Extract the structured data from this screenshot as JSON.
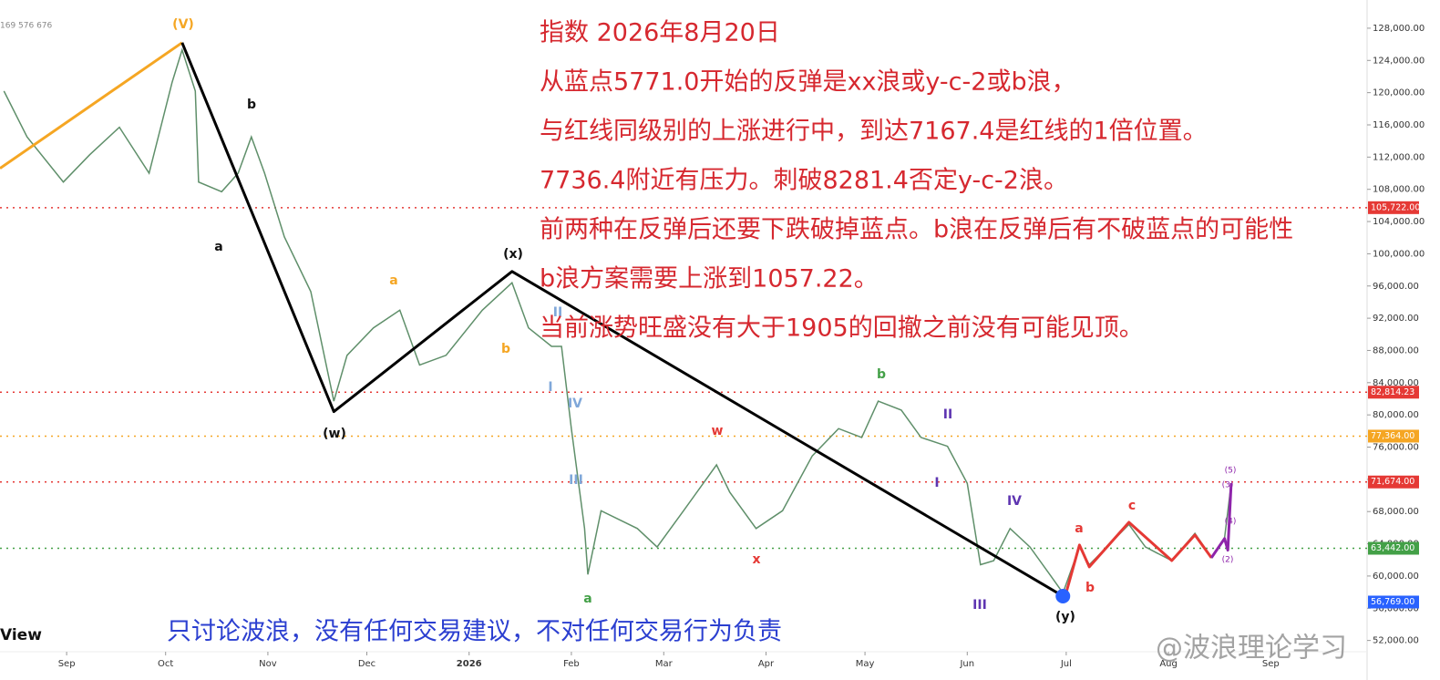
{
  "chart_data": {
    "type": "line",
    "header": "169 576 676",
    "brand": "View",
    "annotations": [
      "指数 2026年8月20日",
      "从蓝点5771.0开始的反弹是xx浪或y-c-2或b浪，",
      "与红线同级别的上涨进行中，到达7167.4是红线的1倍位置。",
      "7736.4附近有压力。刺破8281.4否定y-c-2浪。",
      "前两种在反弹后还要下跌破掉蓝点。b浪在反弹后有不破蓝点的可能性",
      "b浪方案需要上涨到1057.22。",
      "当前涨势旺盛没有大于1905的回撤之前没有可能见顶。"
    ],
    "disclaimer": "只讨论波浪，没有任何交易建议，不对任何交易行为负责",
    "watermark": "@波浪理论学习",
    "wave_labels": [
      "(V)",
      "b",
      "a",
      "(w)",
      "a",
      "(x)",
      "b",
      "II",
      "I",
      "IV",
      "III",
      "a",
      "w",
      "x",
      "b",
      "II",
      "I",
      "IV",
      "III",
      "a",
      "b",
      "c",
      "(y)",
      "(5)",
      "(3)",
      "(4)",
      "(2)"
    ],
    "xlim": [
      -20.2,
      394.2
    ],
    "xticks": [
      {
        "value": 0,
        "label": "Sep"
      },
      {
        "value": 30,
        "label": "Oct"
      },
      {
        "value": 61,
        "label": "Nov"
      },
      {
        "value": 91,
        "label": "Dec"
      },
      {
        "value": 122,
        "label": "2026"
      },
      {
        "value": 153,
        "label": "Feb"
      },
      {
        "value": 181,
        "label": "Mar"
      },
      {
        "value": 212,
        "label": "Apr"
      },
      {
        "value": 242,
        "label": "May"
      },
      {
        "value": 273,
        "label": "Jun"
      },
      {
        "value": 303,
        "label": "Jul"
      },
      {
        "value": 334,
        "label": "Aug"
      },
      {
        "value": 365,
        "label": "Sep"
      }
    ],
    "ylim": [
      50600,
      131500
    ],
    "yticks": [
      {
        "value": 52000,
        "label": "52,000.00"
      },
      {
        "value": 56000,
        "label": "56,000.00"
      },
      {
        "value": 60000,
        "label": "60,000.00"
      },
      {
        "value": 64000,
        "label": "64,000.00"
      },
      {
        "value": 68000,
        "label": "68,000.00"
      },
      {
        "value": 72000,
        "label": "72,000.00"
      },
      {
        "value": 76000,
        "label": "76,000.00"
      },
      {
        "value": 80000,
        "label": "80,000.00"
      },
      {
        "value": 84000,
        "label": "84,000.00"
      },
      {
        "value": 88000,
        "label": "88,000.00"
      },
      {
        "value": 92000,
        "label": "92,000.00"
      },
      {
        "value": 96000,
        "label": "96,000.00"
      },
      {
        "value": 100000,
        "label": "100,000.00"
      },
      {
        "value": 104000,
        "label": "104,000.00"
      },
      {
        "value": 108000,
        "label": "108,000.00"
      },
      {
        "value": 112000,
        "label": "112,000.00"
      },
      {
        "value": 116000,
        "label": "116,000.00"
      },
      {
        "value": 120000,
        "label": "120,000.00"
      },
      {
        "value": 124000,
        "label": "124,000.00"
      },
      {
        "value": 128000,
        "label": "128,000.00"
      }
    ],
    "price": {
      "color": "#5f8f6a",
      "x": [
        -19,
        -12,
        -1,
        7,
        16,
        25,
        32,
        35,
        39,
        40,
        47,
        52,
        56,
        60,
        66,
        74,
        81,
        85,
        93,
        101,
        107,
        115,
        126,
        135,
        140,
        147,
        150,
        153,
        157,
        158,
        162,
        173,
        179,
        187,
        197,
        201,
        209,
        217,
        226,
        234,
        241,
        246,
        253,
        259,
        267,
        273,
        277,
        281,
        286,
        292,
        298,
        302,
        307,
        310,
        322,
        327,
        335,
        342,
        347,
        351,
        353
      ],
      "values": [
        120200,
        114500,
        108900,
        112300,
        115700,
        110000,
        121300,
        125300,
        120200,
        108900,
        107700,
        110000,
        114500,
        110000,
        102100,
        95300,
        81700,
        87400,
        90800,
        93000,
        86200,
        87400,
        93000,
        96400,
        90800,
        88500,
        88500,
        78300,
        65900,
        60200,
        68100,
        65900,
        63600,
        68100,
        73800,
        70400,
        65900,
        68100,
        74900,
        78300,
        77200,
        81700,
        80600,
        77200,
        76100,
        71500,
        61400,
        61900,
        65900,
        63600,
        60200,
        57900,
        63600,
        61400,
        66400,
        63600,
        61900,
        65300,
        62300,
        64700,
        71500
      ]
    },
    "wave_lines": [
      {
        "color": "#f5a623",
        "x": [
          -20.2,
          35
        ],
        "values": [
          110600,
          126200
        ]
      },
      {
        "color": "#000000",
        "x": [
          35,
          81,
          135,
          302
        ],
        "values": [
          126200,
          80400,
          97800,
          57500
        ]
      },
      {
        "color": "#e53935",
        "x": [
          303,
          307,
          310,
          322,
          335,
          342,
          347
        ],
        "values": [
          57960,
          63850,
          61130,
          66670,
          61920,
          65090,
          62260
        ]
      },
      {
        "color": "#8e24aa",
        "x": [
          347,
          351,
          352,
          353
        ],
        "values": [
          62260,
          64650,
          63200,
          71540
        ]
      }
    ],
    "marker": {
      "x": 302,
      "value": 57500,
      "color": "#2962ff"
    },
    "levels": [
      {
        "value": 105722,
        "label": "105,722.00",
        "color": "#e53935",
        "line": true
      },
      {
        "value": 82814.23,
        "label": "82,814.23",
        "color": "#e53935",
        "line": true
      },
      {
        "value": 77364,
        "label": "77,364.00",
        "color": "#f5a623",
        "line": true
      },
      {
        "value": 71674,
        "label": "71,674.00",
        "color": "#e53935",
        "line": true
      },
      {
        "value": 63442,
        "label": "63,442.00",
        "color": "#43a047",
        "line": true
      },
      {
        "value": 56769,
        "label": "56,769.00",
        "color": "#2962ff",
        "line": false
      }
    ]
  }
}
